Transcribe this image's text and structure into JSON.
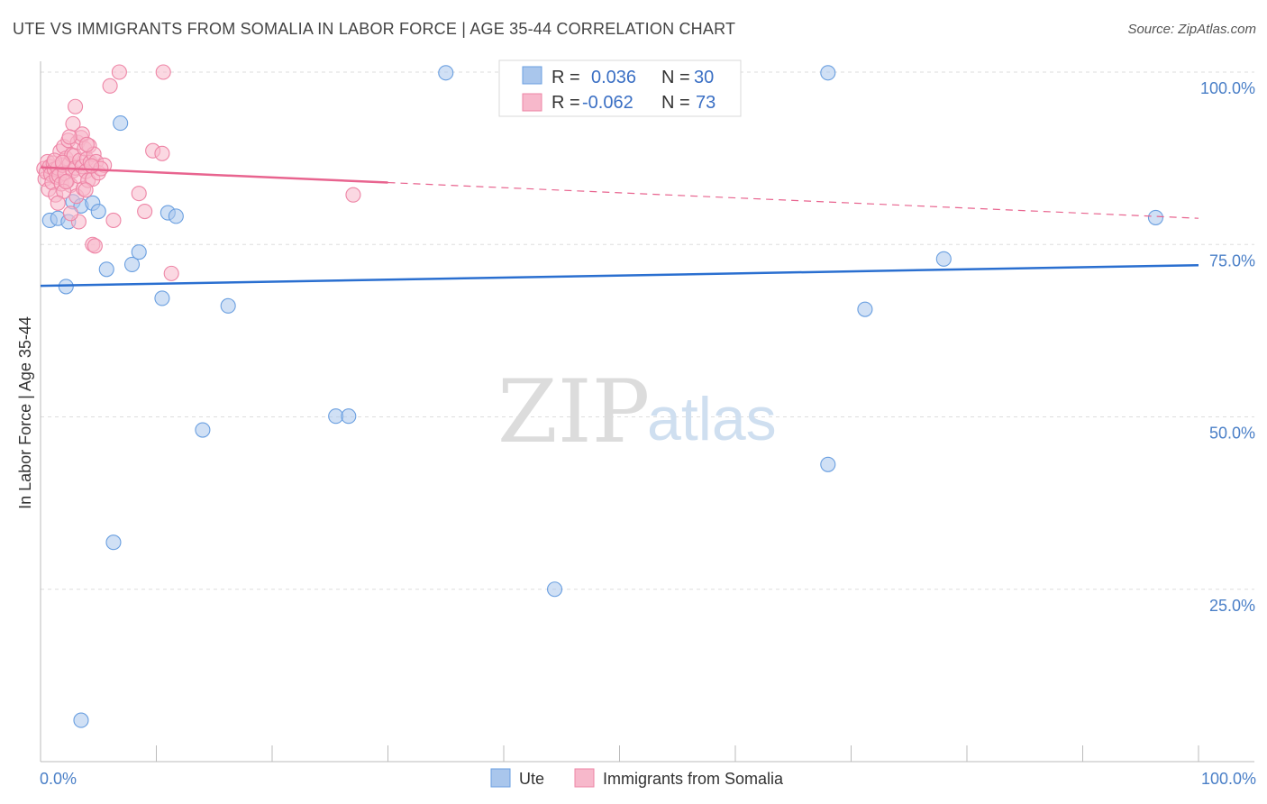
{
  "title": "UTE VS IMMIGRANTS FROM SOMALIA IN LABOR FORCE | AGE 35-44 CORRELATION CHART",
  "source": "Source: ZipAtlas.com",
  "watermark": {
    "zip": "ZIP",
    "atlas": "atlas"
  },
  "legend": {
    "r_label": "R =",
    "n_label": "N =",
    "rows": [
      {
        "r": "0.036",
        "n": "30",
        "color": "#a9c6ec"
      },
      {
        "r": "-0.062",
        "n": "73",
        "color": "#f7b8cb"
      }
    ]
  },
  "bottom_legend": [
    {
      "label": "Ute",
      "color": "#a9c6ec"
    },
    {
      "label": "Immigrants from Somalia",
      "color": "#f7b8cb"
    }
  ],
  "chart_data": {
    "type": "scatter",
    "ylabel": "In Labor Force | Age 35-44",
    "xlim": [
      0,
      100
    ],
    "ylim": [
      0,
      100
    ],
    "x_tick_labels": {
      "left": "0.0%",
      "right": "100.0%"
    },
    "y_ticks": [
      {
        "value": 100,
        "label": "100.0%"
      },
      {
        "value": 75,
        "label": "75.0%"
      },
      {
        "value": 50,
        "label": "50.0%"
      },
      {
        "value": 25,
        "label": "25.0%"
      }
    ],
    "grid": true,
    "series": [
      {
        "name": "Ute",
        "color": "#6a9fe0",
        "fill": "#a9c6ec",
        "line_color": "#2a6fd0",
        "trend": {
          "x0": 0,
          "y0": 69.0,
          "x1": 100,
          "y1": 72.0,
          "dashed_from": null
        },
        "points": [
          [
            0.8,
            78.5
          ],
          [
            1.5,
            78.8
          ],
          [
            2.2,
            68.9
          ],
          [
            2.4,
            78.3
          ],
          [
            2.8,
            81.2
          ],
          [
            3.5,
            80.6
          ],
          [
            4.5,
            81.0
          ],
          [
            5.0,
            79.8
          ],
          [
            5.7,
            71.4
          ],
          [
            6.3,
            31.8
          ],
          [
            6.9,
            92.6
          ],
          [
            7.9,
            72.1
          ],
          [
            8.5,
            73.9
          ],
          [
            10.5,
            67.2
          ],
          [
            11.0,
            79.6
          ],
          [
            11.7,
            79.1
          ],
          [
            14.0,
            48.1
          ],
          [
            16.2,
            66.1
          ],
          [
            25.5,
            50.1
          ],
          [
            26.6,
            50.1
          ],
          [
            35.0,
            99.9
          ],
          [
            44.4,
            25.0
          ],
          [
            53.3,
            100.0
          ],
          [
            55.6,
            100.0
          ],
          [
            68.0,
            99.9
          ],
          [
            68.0,
            43.1
          ],
          [
            71.2,
            65.6
          ],
          [
            78.0,
            72.9
          ],
          [
            96.3,
            78.9
          ],
          [
            3.5,
            6.0
          ]
        ]
      },
      {
        "name": "Immigrants from Somalia",
        "color": "#ee85a6",
        "fill": "#f7b8cb",
        "line_color": "#e8648f",
        "trend": {
          "x0": 0,
          "y0": 86.2,
          "x1": 100,
          "y1": 78.8,
          "dashed_from": 30
        },
        "points": [
          [
            0.3,
            86.0
          ],
          [
            0.4,
            84.5
          ],
          [
            0.5,
            85.5
          ],
          [
            0.6,
            87.0
          ],
          [
            0.7,
            83.0
          ],
          [
            0.8,
            86.3
          ],
          [
            0.9,
            85.2
          ],
          [
            1.0,
            84.0
          ],
          [
            1.1,
            86.8
          ],
          [
            1.2,
            85.9
          ],
          [
            1.3,
            82.2
          ],
          [
            1.4,
            84.8
          ],
          [
            1.5,
            86.1
          ],
          [
            1.6,
            85.0
          ],
          [
            1.7,
            88.5
          ],
          [
            1.8,
            83.8
          ],
          [
            1.9,
            86.5
          ],
          [
            2.0,
            89.2
          ],
          [
            2.1,
            85.3
          ],
          [
            2.2,
            87.5
          ],
          [
            2.3,
            84.2
          ],
          [
            2.4,
            90.1
          ],
          [
            2.5,
            86.7
          ],
          [
            2.6,
            83.6
          ],
          [
            2.7,
            88.0
          ],
          [
            2.8,
            85.7
          ],
          [
            2.9,
            87.9
          ],
          [
            3.0,
            86.1
          ],
          [
            3.1,
            82.0
          ],
          [
            3.2,
            89.8
          ],
          [
            3.3,
            84.9
          ],
          [
            3.4,
            87.2
          ],
          [
            3.5,
            90.5
          ],
          [
            3.6,
            86.3
          ],
          [
            3.7,
            83.1
          ],
          [
            3.8,
            88.9
          ],
          [
            3.9,
            85.6
          ],
          [
            4.0,
            87.4
          ],
          [
            4.1,
            84.3
          ],
          [
            4.2,
            89.3
          ],
          [
            4.3,
            86.9
          ],
          [
            4.5,
            84.5
          ],
          [
            4.6,
            88.1
          ],
          [
            4.8,
            87.0
          ],
          [
            5.0,
            85.4
          ],
          [
            5.5,
            86.5
          ],
          [
            2.8,
            92.5
          ],
          [
            3.0,
            95.0
          ],
          [
            3.6,
            91.0
          ],
          [
            6.0,
            98.0
          ],
          [
            6.8,
            100.0
          ],
          [
            10.6,
            100.0
          ],
          [
            2.5,
            90.6
          ],
          [
            4.0,
            89.5
          ],
          [
            6.3,
            78.5
          ],
          [
            4.5,
            75.0
          ],
          [
            4.7,
            74.8
          ],
          [
            8.5,
            82.4
          ],
          [
            9.0,
            79.8
          ],
          [
            9.7,
            88.6
          ],
          [
            10.5,
            88.2
          ],
          [
            11.3,
            70.8
          ],
          [
            2.0,
            82.7
          ],
          [
            2.2,
            84.1
          ],
          [
            3.3,
            78.3
          ],
          [
            2.6,
            79.5
          ],
          [
            1.5,
            81.0
          ],
          [
            5.2,
            86.0
          ],
          [
            3.9,
            82.9
          ],
          [
            4.4,
            86.4
          ],
          [
            27.0,
            82.2
          ],
          [
            1.2,
            87.2
          ],
          [
            1.9,
            86.9
          ]
        ]
      }
    ]
  }
}
